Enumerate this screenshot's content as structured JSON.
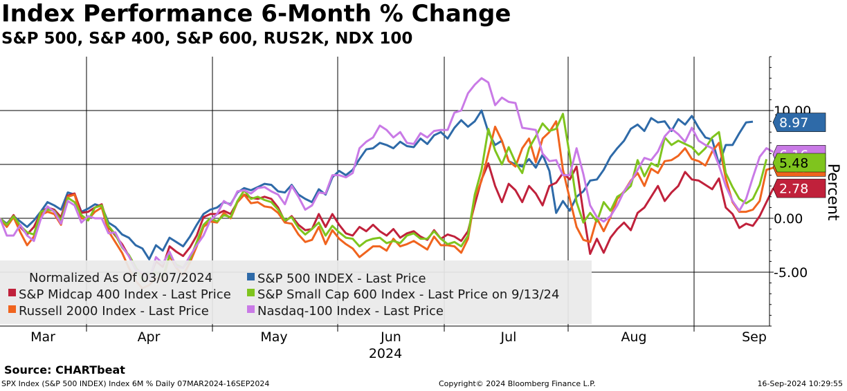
{
  "title": "Index Performance 6-Month % Change",
  "subtitle": "S&P 500, S&P 400, S&P 600, RUS2K, NDX 100",
  "source": "Source: CHARTbeat",
  "footer": {
    "left": "SPX Index (S&P 500 INDEX) Index 6M %  Daily 07MAR2024-16SEP2024",
    "center": "Copyright© 2024 Bloomberg Finance L.P.",
    "right": "16-Sep-2024 10:29:55"
  },
  "chart_data": {
    "type": "line",
    "ylabel": "Percent",
    "ylim": [
      -10,
      15
    ],
    "yticks": [
      -5,
      0,
      5,
      10
    ],
    "ytick_labels": [
      "-5.00",
      "0.00",
      "5.00",
      "10.00"
    ],
    "month_labels": [
      "Mar",
      "Apr",
      "May",
      "Jun",
      "Jul",
      "Aug",
      "Sep"
    ],
    "year_label": "2024",
    "legend_header": "Normalized As Of 03/07/2024",
    "series": [
      {
        "name": "S&P 500 INDEX - Last Price",
        "color": "#2e6aa8",
        "last": "8.97",
        "values": [
          0,
          -0.5,
          0.2,
          -0.3,
          -0.8,
          -0.2,
          0.6,
          1.5,
          1.2,
          0.8,
          2.4,
          2.2,
          0.6,
          0.9,
          1.3,
          1.1,
          -0.4,
          -0.8,
          -1.5,
          -1.8,
          -2.5,
          -2.8,
          -3.8,
          -2.5,
          -3.0,
          -1.8,
          -2.2,
          -2.6,
          -1.7,
          -0.6,
          0.4,
          0.8,
          1.0,
          1.5,
          1.3,
          2.4,
          2.8,
          2.6,
          2.9,
          3.2,
          3.1,
          2.5,
          2.4,
          3.1,
          2.2,
          1.8,
          1.5,
          2.7,
          2.2,
          3.8,
          4.4,
          4.0,
          4.5,
          5.5,
          6.4,
          6.5,
          7.0,
          6.8,
          6.5,
          7.1,
          6.7,
          6.6,
          7.4,
          6.9,
          7.7,
          8.0,
          7.4,
          8.4,
          9.1,
          8.5,
          9.0,
          10.0,
          8.0,
          6.8,
          7.2,
          5.3,
          5.0,
          4.8,
          5.5,
          4.7,
          5.9,
          4.4,
          0.5,
          1.6,
          0.7,
          2.0,
          2.5,
          3.5,
          3.6,
          4.5,
          5.7,
          6.5,
          7.2,
          8.3,
          8.7,
          8.1,
          9.3,
          8.9,
          9.0,
          8.1,
          9.2,
          8.7,
          9.5,
          8.4,
          7.5,
          7.3,
          5.0,
          6.8,
          6.8,
          7.9,
          8.9,
          8.97
        ]
      },
      {
        "name": "S&P Midcap 400 Index - Last Price",
        "color": "#c0213b",
        "last": "2.78",
        "values": [
          0,
          -0.6,
          0.3,
          -0.8,
          -1.5,
          -0.8,
          0.5,
          1.0,
          0.8,
          0.1,
          2.1,
          2.3,
          0.5,
          0.6,
          1.0,
          1.3,
          -0.8,
          -1.6,
          -2.4,
          -3.5,
          -4.6,
          -5.2,
          -5.6,
          -4.0,
          -4.5,
          -2.6,
          -3.1,
          -3.5,
          -2.7,
          -1.6,
          0.1,
          0.4,
          0.4,
          0.7,
          0.4,
          1.5,
          2.2,
          1.9,
          1.8,
          2.0,
          1.8,
          1.0,
          -0.3,
          0.2,
          -0.6,
          -1.1,
          -1.0,
          0.4,
          -0.8,
          0.4,
          -0.6,
          -1.4,
          -1.6,
          -0.8,
          -1.2,
          -0.6,
          -1.2,
          -1.6,
          -1.0,
          -1.8,
          -1.4,
          -1.2,
          -1.7,
          -2.0,
          -1.1,
          -1.9,
          -1.5,
          -1.7,
          -2.1,
          -1.2,
          1.3,
          3.6,
          5.1,
          3.0,
          1.5,
          3.2,
          2.6,
          1.5,
          3.0,
          2.3,
          1.2,
          3.0,
          3.3,
          4.2,
          3.6,
          4.8,
          0.5,
          -3.3,
          -1.9,
          -3.2,
          -1.8,
          -1.0,
          -0.4,
          -1.1,
          0.5,
          1.0,
          2.0,
          3.0,
          1.6,
          2.4,
          3.0,
          4.3,
          3.6,
          3.5,
          3.1,
          2.7,
          3.7,
          1.0,
          0.4,
          -0.9,
          -0.5,
          -0.7,
          0.2,
          1.5,
          2.78
        ]
      },
      {
        "name": "Russell 2000 Index - Last Price",
        "color": "#f0641e",
        "last": "4.69",
        "values": [
          0,
          -0.8,
          0.1,
          -1.3,
          -2.5,
          -1.7,
          0.3,
          0.6,
          0.4,
          -0.6,
          2.0,
          2.2,
          0.0,
          -0.1,
          0.6,
          1.0,
          -1.2,
          -2.2,
          -3.2,
          -4.6,
          -5.8,
          -6.5,
          -6.2,
          -5.5,
          -5.8,
          -3.5,
          -4.6,
          -5.3,
          -4.1,
          -2.6,
          -0.8,
          -0.3,
          -0.4,
          0.5,
          0.0,
          1.5,
          2.2,
          1.4,
          1.5,
          1.1,
          1.0,
          0.5,
          -0.4,
          -0.5,
          -1.5,
          -2.2,
          -2.0,
          -0.8,
          -2.4,
          -1.1,
          -1.9,
          -2.4,
          -2.8,
          -3.6,
          -3.1,
          -2.6,
          -2.6,
          -3.0,
          -1.9,
          -2.6,
          -2.4,
          -2.1,
          -2.5,
          -2.9,
          -1.7,
          -2.5,
          -2.5,
          -2.6,
          -3.2,
          -1.9,
          1.9,
          3.5,
          6.0,
          8.5,
          7.2,
          5.3,
          4.8,
          6.5,
          7.4,
          5.2,
          7.4,
          8.0,
          9.0,
          4.5,
          1.8,
          -0.8,
          -2.0,
          -2.2,
          0.0,
          -1.2,
          0.1,
          1.8,
          2.5,
          3.5,
          4.2,
          3.0,
          4.6,
          4.2,
          5.3,
          5.4,
          5.8,
          6.5,
          5.5,
          5.3,
          4.9,
          6.2,
          7.0,
          3.7,
          1.5,
          0.6,
          0.6,
          0.8,
          1.6,
          4.5,
          4.69
        ]
      },
      {
        "name": "S&P Small Cap 600 Index - Last Price on 9/13/24",
        "color": "#7fc41e",
        "last": "5.48",
        "values": [
          0,
          -0.6,
          0.2,
          -0.7,
          -1.3,
          -1.5,
          0.6,
          0.8,
          0.7,
          -0.2,
          1.9,
          1.5,
          0.3,
          -0.2,
          1.0,
          1.2,
          -0.7,
          -1.5,
          -2.7,
          -3.4,
          -4.5,
          -5.8,
          -5.2,
          -5.0,
          -5.5,
          -3.4,
          -4.3,
          -4.6,
          -3.8,
          -2.2,
          -0.6,
          0.0,
          -0.3,
          0.3,
          0.1,
          1.6,
          2.6,
          1.8,
          2.0,
          1.7,
          1.5,
          0.8,
          -0.2,
          0.1,
          -0.9,
          -1.5,
          -1.0,
          -0.4,
          -1.6,
          -0.7,
          -1.3,
          -1.8,
          -1.9,
          -2.6,
          -2.1,
          -1.9,
          -1.8,
          -2.3,
          -2.1,
          -2.3,
          -1.6,
          -1.4,
          -1.9,
          -1.9,
          -1.2,
          -1.9,
          -2.4,
          -2.2,
          -2.6,
          -1.6,
          2.2,
          4.5,
          8.3,
          6.3,
          5.0,
          6.6,
          5.2,
          4.2,
          6.5,
          7.6,
          8.8,
          8.1,
          8.3,
          9.7,
          5.8,
          1.5,
          -0.4,
          0.5,
          -0.3,
          1.5,
          0.7,
          2.0,
          2.4,
          3.0,
          5.4,
          3.9,
          5.1,
          4.8,
          7.5,
          6.8,
          7.2,
          6.9,
          6.6,
          5.9,
          6.5,
          7.5,
          8.0,
          4.2,
          2.9,
          1.8,
          1.4,
          1.8,
          3.1,
          5.48
        ]
      },
      {
        "name": "Nasdaq-100 Index - Last Price",
        "color": "#c97ae6",
        "last": "6.16",
        "values": [
          0,
          -1.6,
          -1.6,
          -0.6,
          -1.6,
          -2.1,
          -0.1,
          1.1,
          0.6,
          -0.5,
          1.6,
          1.2,
          -0.4,
          0.2,
          0.0,
          0.0,
          -1.4,
          -1.3,
          -2.6,
          -3.5,
          -4.8,
          -5.0,
          -5.8,
          -3.6,
          -4.2,
          -3.1,
          -4.5,
          -4.6,
          -3.5,
          -2.5,
          -1.6,
          -0.2,
          0.4,
          1.6,
          1.2,
          2.5,
          2.6,
          2.3,
          2.8,
          2.9,
          2.5,
          2.2,
          1.3,
          3.0,
          2.0,
          0.8,
          1.2,
          2.4,
          2.3,
          4.0,
          4.0,
          3.8,
          4.2,
          6.5,
          7.1,
          7.5,
          8.6,
          8.2,
          7.5,
          8.0,
          7.0,
          6.9,
          7.9,
          7.5,
          8.1,
          8.2,
          8.2,
          9.8,
          10.0,
          11.6,
          12.4,
          13.0,
          12.6,
          10.5,
          11.2,
          10.8,
          10.7,
          8.4,
          8.3,
          8.2,
          6.0,
          5.3,
          5.4,
          4.0,
          4.0,
          6.5,
          4.1,
          1.2,
          0.1,
          -0.3,
          0.2,
          1.2,
          2.5,
          3.4,
          4.5,
          5.6,
          5.4,
          6.2,
          7.6,
          8.3,
          7.8,
          7.1,
          8.4,
          7.2,
          6.8,
          6.5,
          4.9,
          3.0,
          1.6,
          0.7,
          1.8,
          3.8,
          5.7,
          6.5,
          6.16
        ]
      }
    ]
  }
}
